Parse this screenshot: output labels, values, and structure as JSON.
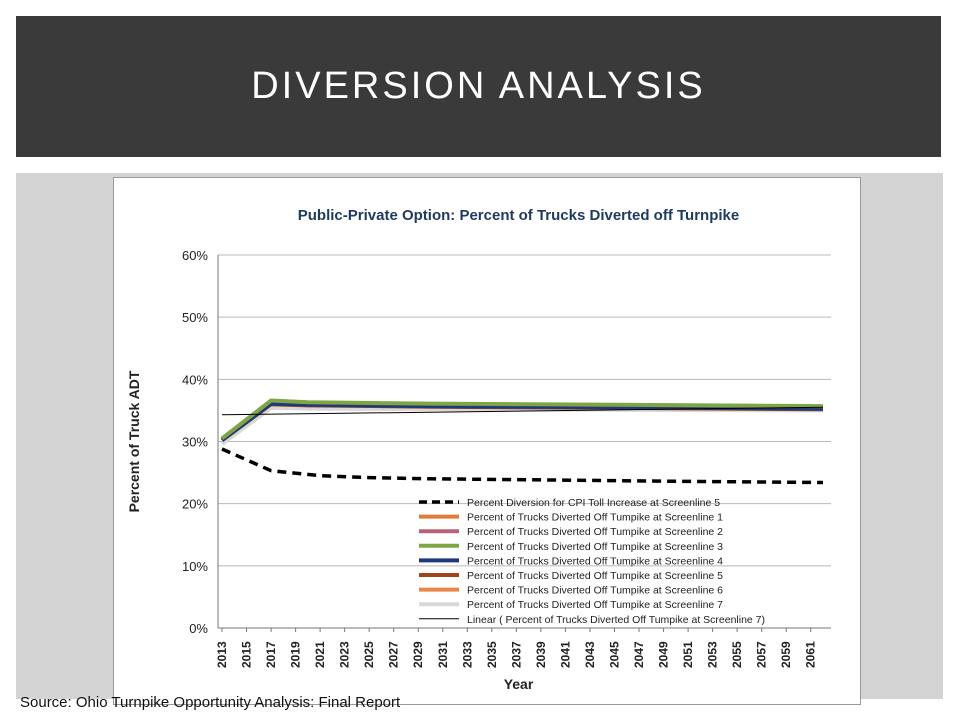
{
  "slide": {
    "title": "DIVERSION ANALYSIS",
    "source": "Source: Ohio Turnpike Opportunity Analysis: Final Report"
  },
  "chart_data": {
    "type": "line",
    "title": "Public-Private Option: Percent of Trucks Diverted off Turnpike",
    "xlabel": "Year",
    "ylabel": "Percent of Truck ADT",
    "xlim": [
      2013,
      2062
    ],
    "ylim": [
      0,
      60
    ],
    "y_ticks": [
      "0%",
      "10%",
      "20%",
      "30%",
      "40%",
      "50%",
      "60%"
    ],
    "x_ticks": [
      "2013",
      "2015",
      "2017",
      "2019",
      "2021",
      "2023",
      "2025",
      "2027",
      "2029",
      "2031",
      "2033",
      "2035",
      "2037",
      "2039",
      "2041",
      "2043",
      "2045",
      "2047",
      "2049",
      "2051",
      "2053",
      "2055",
      "2057",
      "2059",
      "2061"
    ],
    "grid": "horizontal",
    "legend_position": "bottom-right inside plot",
    "series": [
      {
        "name": "Percent Diversion for CPI Toll Increase at Screenline 5",
        "color": "#000000",
        "style": "dashed",
        "x": [
          2013,
          2017,
          2021,
          2025,
          2030,
          2040,
          2050,
          2062
        ],
        "values": [
          28.8,
          25.3,
          24.5,
          24.2,
          24.0,
          23.8,
          23.6,
          23.4
        ]
      },
      {
        "name": "Percent of Trucks Diverted Off Tumpike at Screenline 1",
        "color": "#e07b39",
        "style": "solid",
        "x": [
          2013,
          2017,
          2020,
          2030,
          2045,
          2062
        ],
        "values": [
          30.3,
          36.3,
          36.0,
          35.8,
          35.6,
          35.4
        ]
      },
      {
        "name": "Percent of Trucks Diverted Off Tumpike at Screenline 2",
        "color": "#b5637a",
        "style": "solid",
        "x": [
          2013,
          2017,
          2020,
          2030,
          2045,
          2062
        ],
        "values": [
          30.4,
          36.4,
          36.1,
          35.9,
          35.7,
          35.5
        ]
      },
      {
        "name": "Percent of Trucks Diverted Off Tumpike at Screenline 3",
        "color": "#7fa644",
        "style": "solid",
        "x": [
          2013,
          2017,
          2020,
          2030,
          2045,
          2062
        ],
        "values": [
          30.5,
          36.6,
          36.3,
          36.1,
          35.9,
          35.7
        ]
      },
      {
        "name": "Percent of Trucks Diverted Off Tumpike at Screenline 4",
        "color": "#1f3a7a",
        "style": "solid",
        "x": [
          2013,
          2017,
          2020,
          2030,
          2045,
          2062
        ],
        "values": [
          30.2,
          36.1,
          35.9,
          35.7,
          35.5,
          35.3
        ]
      },
      {
        "name": "Percent of Trucks Diverted Off Tumpike at Screenline 5",
        "color": "#a0441c",
        "style": "solid",
        "x": [
          2013,
          2017,
          2020,
          2030,
          2045,
          2062
        ],
        "values": [
          30.2,
          36.0,
          35.8,
          35.6,
          35.4,
          35.2
        ]
      },
      {
        "name": "Percent of Trucks Diverted Off Tumpike at Screenline 6",
        "color": "#e8874a",
        "style": "solid",
        "x": [
          2013,
          2017,
          2020,
          2030,
          2045,
          2062
        ],
        "values": [
          30.3,
          36.2,
          35.9,
          35.7,
          35.5,
          35.3
        ]
      },
      {
        "name": "Percent of Trucks Diverted Off Tumpike at Screenline 7",
        "color": "#d8d8d8",
        "style": "solid",
        "x": [
          2013,
          2017,
          2020,
          2030,
          2045,
          2062
        ],
        "values": [
          29.6,
          35.4,
          35.3,
          35.2,
          35.1,
          35.0
        ]
      },
      {
        "name": "Linear ( Percent of Trucks Diverted Off Tumpike at Screenline 7)",
        "color": "#000000",
        "style": "thin",
        "x": [
          2013,
          2062
        ],
        "values": [
          34.3,
          35.5
        ]
      }
    ]
  }
}
